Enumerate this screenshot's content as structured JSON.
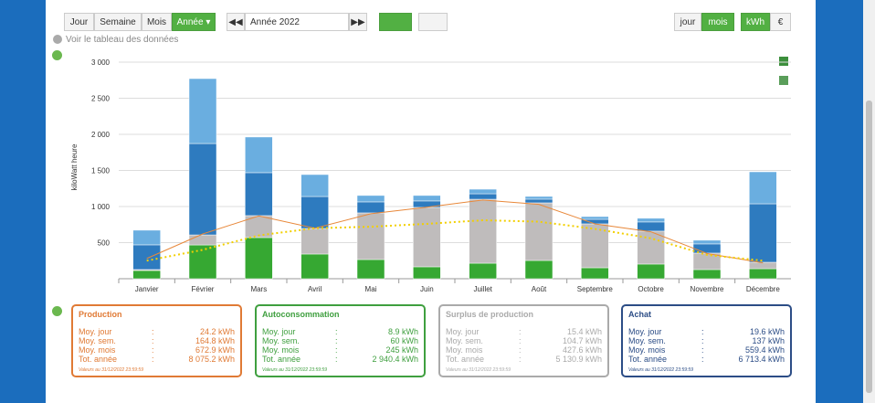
{
  "toolbar": {
    "period_buttons": [
      "Jour",
      "Semaine",
      "Mois",
      "Année ▾"
    ],
    "period_select": "Année 2022",
    "unit_toggle": [
      "jour",
      "mois"
    ],
    "currency_toggle": [
      "kWh",
      "€"
    ]
  },
  "data_link": "Voir le tableau des données",
  "chart_data": {
    "type": "bar",
    "stacked": true,
    "y_label": "kiloWatt heure",
    "grid": true,
    "categories": [
      "Janvier",
      "Février",
      "Mars",
      "Avril",
      "Mai",
      "Juin",
      "Juillet",
      "Août",
      "Septembre",
      "Octobre",
      "Novembre",
      "Décembre"
    ],
    "ylim": [
      0,
      3000
    ],
    "yticks": [
      500,
      {
        "value": 1000,
        "label": "1 000"
      },
      {
        "value": 1500,
        "label": "1 500"
      },
      {
        "value": 2000,
        "label": "2 000"
      },
      {
        "value": 2500,
        "label": "2 500"
      },
      {
        "value": 3000,
        "label": "3 000"
      }
    ],
    "series": [
      {
        "color": "#36a832",
        "values": [
          114,
          468,
          570,
          342,
          266,
          165,
          215,
          253,
          152,
          203,
          127,
          139
        ]
      },
      {
        "color": "#bfbcbc",
        "values": [
          13,
          139,
          304,
          354,
          646,
          823,
          886,
          798,
          608,
          456,
          228,
          89
        ]
      },
      {
        "color": "#2e7bbf",
        "values": [
          342,
          1266,
          595,
          443,
          152,
          89,
          76,
          51,
          63,
          127,
          127,
          810
        ]
      },
      {
        "color": "#6aaee0",
        "values": [
          203,
          899,
          494,
          304,
          89,
          76,
          63,
          38,
          38,
          51,
          51,
          443
        ]
      },
      {
        "type": "line",
        "color": "#e8883a",
        "values": [
          280,
          620,
          870,
          700,
          900,
          990,
          1090,
          1030,
          760,
          650,
          350,
          220
        ]
      },
      {
        "type": "line",
        "style": "dotted",
        "color": "#f2cf00",
        "values": [
          250,
          400,
          600,
          700,
          720,
          760,
          810,
          790,
          690,
          560,
          330,
          250
        ]
      }
    ]
  },
  "cards": [
    {
      "title": "Production",
      "color": "#e07a35",
      "rows": [
        [
          "Moy. jour",
          ":",
          "24.2 kWh"
        ],
        [
          "Moy. sem.",
          ":",
          "164.8 kWh"
        ],
        [
          "Moy. mois",
          ":",
          "672.9 kWh"
        ],
        [
          "Tot. année",
          ":",
          "8 075.2 kWh"
        ]
      ],
      "note": "Valeurs au 31/12/2022 23:59:59"
    },
    {
      "title": "Autoconsommation",
      "color": "#3f9f3f",
      "rows": [
        [
          "Moy. jour",
          ":",
          "8.9 kWh"
        ],
        [
          "Moy. sem.",
          ":",
          "60 kWh"
        ],
        [
          "Moy. mois",
          ":",
          "245 kWh"
        ],
        [
          "Tot. année",
          ":",
          "2 940.4 kWh"
        ]
      ],
      "note": "Valeurs au 31/12/2022 23:59:59"
    },
    {
      "title": "Surplus de production",
      "color": "#aaaaaa",
      "rows": [
        [
          "Moy. jour",
          ":",
          "15.4 kWh"
        ],
        [
          "Moy. sem.",
          ":",
          "104.7 kWh"
        ],
        [
          "Moy. mois",
          ":",
          "427.6 kWh"
        ],
        [
          "Tot. année",
          ":",
          "5 130.9 kWh"
        ]
      ],
      "note": "Valeurs au 31/12/2022 23:59:59"
    },
    {
      "title": "Achat",
      "color": "#2c4d86",
      "rows": [
        [
          "Moy. jour",
          ":",
          "19.6 kWh"
        ],
        [
          "Moy. sem.",
          ":",
          "137 kWh"
        ],
        [
          "Moy. mois",
          ":",
          "559.4 kWh"
        ],
        [
          "Tot. année",
          ":",
          "6 713.4 kWh"
        ]
      ],
      "note": "Valeurs au 31/12/2022 23:59:59"
    }
  ]
}
